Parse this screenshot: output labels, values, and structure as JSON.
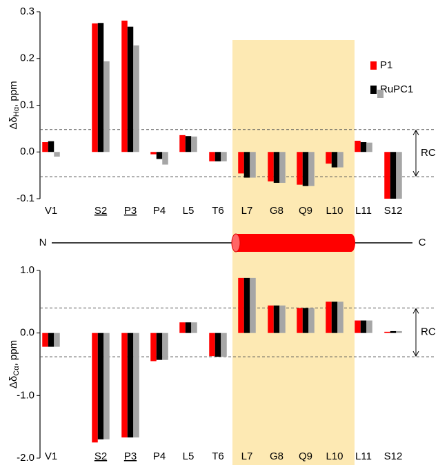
{
  "chart_data": [
    {
      "type": "bar",
      "ylabel": {
        "main": "Δδ",
        "sub": "Hα",
        "rest": ", ppm"
      },
      "categories": [
        "V1",
        "S2",
        "P3",
        "P4",
        "L5",
        "T6",
        "L7",
        "G8",
        "Q9",
        "L10",
        "L11",
        "S12"
      ],
      "underlined": [
        "S2",
        "P3"
      ],
      "series": [
        {
          "name": "P1",
          "color": "#ff0000",
          "values": [
            0.021,
            0.275,
            0.281,
            -0.005,
            0.036,
            -0.02,
            -0.046,
            -0.063,
            -0.07,
            -0.025,
            0.024,
            -0.1
          ]
        },
        {
          "name": "RuPC1",
          "color": "#000000",
          "values": [
            0.023,
            0.276,
            0.268,
            -0.015,
            0.034,
            -0.02,
            -0.055,
            -0.066,
            -0.073,
            -0.033,
            0.021,
            -0.1
          ]
        },
        {
          "color": "#a6a6a6",
          "values": [
            -0.01,
            0.194,
            0.228,
            -0.027,
            0.033,
            -0.02,
            -0.055,
            -0.066,
            -0.073,
            -0.033,
            0.02,
            -0.1
          ]
        }
      ],
      "ylim": [
        -0.1,
        0.3
      ],
      "yticks": [
        -0.1,
        {
          "value": 0,
          "label": "0.0"
        },
        0.1,
        0.2,
        0.3
      ],
      "reference_lines": [
        0.048,
        -0.053
      ],
      "reference_label": "RC",
      "legend": "upper right"
    },
    {
      "type": "bar",
      "ylabel": {
        "main": "Δδ",
        "sub": "Cα",
        "rest": ", ppm"
      },
      "categories": [
        "V1",
        "S2",
        "P3",
        "P4",
        "L5",
        "T6",
        "L7",
        "G8",
        "Q9",
        "L10",
        "L11",
        "S12"
      ],
      "underlined": [
        "S2",
        "P3"
      ],
      "series": [
        {
          "color": "#ff0000",
          "values": [
            -0.22,
            -1.75,
            -1.67,
            -0.45,
            0.17,
            -0.37,
            0.88,
            0.44,
            0.4,
            0.5,
            0.2,
            0.02
          ]
        },
        {
          "color": "#000000",
          "values": [
            -0.22,
            -1.7,
            -1.67,
            -0.43,
            0.17,
            -0.38,
            0.88,
            0.44,
            0.4,
            0.5,
            0.2,
            0.03
          ]
        },
        {
          "color": "#a6a6a6",
          "values": [
            -0.22,
            -1.7,
            -1.67,
            -0.43,
            0.17,
            -0.38,
            0.88,
            0.44,
            0.4,
            0.5,
            0.2,
            0.03
          ]
        }
      ],
      "ylim": [
        -2,
        1
      ],
      "yticks": [
        {
          "value": -2,
          "label": "-2.0"
        },
        {
          "value": -1,
          "label": "-1.0"
        },
        {
          "value": 0,
          "label": "0.0"
        },
        {
          "value": 1,
          "label": "1.0"
        }
      ],
      "reference_lines": [
        0.4,
        -0.38
      ],
      "reference_label": "RC"
    }
  ],
  "helix": {
    "start": "N",
    "end": "C",
    "from": "L7",
    "to": "L10",
    "color": "#ff0000",
    "band_color": "#fde9b3"
  }
}
